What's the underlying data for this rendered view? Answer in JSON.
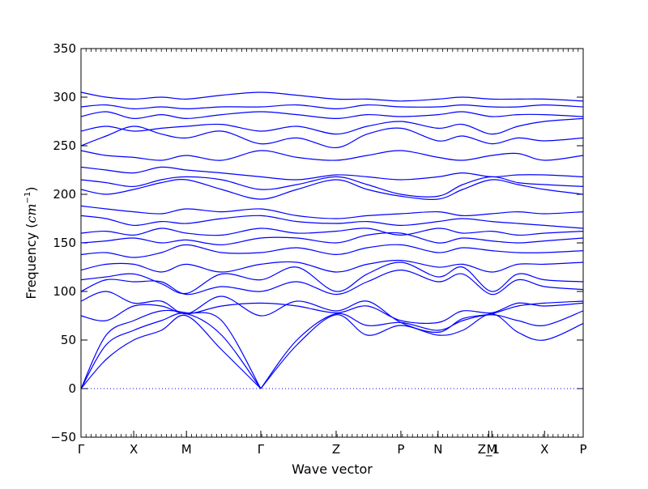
{
  "chart_data": {
    "type": "line",
    "title": "",
    "xlabel": "Wave vector",
    "ylabel": {
      "prefix": "Frequency (",
      "unit": "cm",
      "exponent": "−1",
      "suffix": ")"
    },
    "ylim": [
      -50,
      350
    ],
    "y_ticks": [
      -50,
      0,
      50,
      100,
      150,
      200,
      250,
      300,
      350
    ],
    "x_path": [
      "Γ",
      "X",
      "M",
      "Γ",
      "Z",
      "P",
      "N",
      "Z_1",
      "M",
      "X",
      "P"
    ],
    "x_high_symmetry_points": [
      {
        "label": "Γ",
        "x": 0.0
      },
      {
        "label": "X",
        "x": 0.105
      },
      {
        "label": "M",
        "x": 0.21
      },
      {
        "label": "Γ",
        "x": 0.358
      },
      {
        "label": "Z",
        "x": 0.508
      },
      {
        "label": "P",
        "x": 0.637
      },
      {
        "label": "N",
        "x": 0.711
      },
      {
        "label": "Z_1",
        "x": 0.812
      },
      {
        "label": "M",
        "x": 0.818
      },
      {
        "label": "X",
        "x": 0.923
      },
      {
        "label": "P",
        "x": 1.0
      }
    ],
    "zero_line": {
      "y": 0,
      "style": "dotted"
    },
    "line_color": "#0000ff",
    "axis_color": "#000000",
    "grid": false,
    "series": [
      {
        "x": [
          0,
          0.05,
          0.105,
          0.16,
          0.21,
          0.28,
          0.358
        ],
        "y": [
          0,
          30,
          50,
          60,
          75,
          40,
          0
        ]
      },
      {
        "x": [
          0,
          0.05,
          0.105,
          0.16,
          0.21,
          0.28,
          0.358
        ],
        "y": [
          0,
          45,
          60,
          70,
          77,
          55,
          0
        ]
      },
      {
        "x": [
          0,
          0.05,
          0.105,
          0.16,
          0.21,
          0.28,
          0.358
        ],
        "y": [
          0,
          55,
          70,
          80,
          78,
          70,
          0
        ]
      },
      {
        "x": [
          0.358,
          0.43,
          0.508,
          0.57,
          0.637,
          0.711,
          0.76,
          0.818,
          0.87,
          0.923,
          1.0
        ],
        "y": [
          0,
          45,
          76,
          55,
          65,
          55,
          60,
          77,
          58,
          50,
          67
        ]
      },
      {
        "x": [
          0.358,
          0.43,
          0.508,
          0.57,
          0.637,
          0.711,
          0.76,
          0.818,
          0.87,
          0.923,
          1.0
        ],
        "y": [
          0,
          50,
          77,
          65,
          68,
          60,
          70,
          76,
          70,
          65,
          80
        ]
      },
      {
        "x": [
          0,
          0.05,
          0.105,
          0.16,
          0.21,
          0.28,
          0.358,
          0.43,
          0.508,
          0.57,
          0.637,
          0.711,
          0.76,
          0.818,
          0.87,
          0.923,
          1.0
        ],
        "y": [
          75,
          70,
          85,
          85,
          77,
          85,
          88,
          85,
          78,
          85,
          70,
          68,
          80,
          78,
          88,
          85,
          88
        ]
      },
      {
        "x": [
          0,
          0.05,
          0.105,
          0.16,
          0.21,
          0.28,
          0.358,
          0.43,
          0.508,
          0.57,
          0.637,
          0.711,
          0.76,
          0.818,
          0.87,
          0.923,
          1.0
        ],
        "y": [
          90,
          100,
          88,
          90,
          77,
          95,
          75,
          90,
          80,
          90,
          68,
          58,
          72,
          77,
          85,
          88,
          90
        ]
      },
      {
        "x": [
          0,
          0.05,
          0.105,
          0.16,
          0.21,
          0.28,
          0.358,
          0.43,
          0.508,
          0.57,
          0.637,
          0.711,
          0.76,
          0.818,
          0.87,
          0.923,
          1.0
        ],
        "y": [
          100,
          112,
          110,
          110,
          97,
          105,
          100,
          110,
          97,
          110,
          122,
          110,
          118,
          97,
          112,
          105,
          102
        ]
      },
      {
        "x": [
          0,
          0.05,
          0.105,
          0.16,
          0.21,
          0.28,
          0.358,
          0.43,
          0.508,
          0.57,
          0.637,
          0.711,
          0.76,
          0.818,
          0.87,
          0.923,
          1.0
        ],
        "y": [
          112,
          115,
          118,
          108,
          98,
          118,
          112,
          125,
          100,
          118,
          130,
          115,
          125,
          100,
          118,
          112,
          110
        ]
      },
      {
        "x": [
          0,
          0.05,
          0.105,
          0.16,
          0.21,
          0.28,
          0.358,
          0.43,
          0.508,
          0.57,
          0.637,
          0.711,
          0.76,
          0.818,
          0.87,
          0.923,
          1.0
        ],
        "y": [
          122,
          128,
          128,
          120,
          128,
          120,
          128,
          130,
          120,
          128,
          132,
          125,
          128,
          120,
          128,
          128,
          130
        ]
      },
      {
        "x": [
          0,
          0.05,
          0.105,
          0.16,
          0.21,
          0.28,
          0.358,
          0.43,
          0.508,
          0.57,
          0.637,
          0.711,
          0.76,
          0.818,
          0.87,
          0.923,
          1.0
        ],
        "y": [
          138,
          140,
          135,
          140,
          148,
          140,
          140,
          145,
          138,
          145,
          148,
          140,
          145,
          142,
          140,
          140,
          142
        ]
      },
      {
        "x": [
          0,
          0.05,
          0.105,
          0.16,
          0.21,
          0.28,
          0.358,
          0.43,
          0.508,
          0.57,
          0.637,
          0.711,
          0.76,
          0.818,
          0.87,
          0.923,
          1.0
        ],
        "y": [
          150,
          152,
          155,
          150,
          153,
          148,
          155,
          155,
          150,
          158,
          160,
          150,
          155,
          152,
          150,
          152,
          155
        ]
      },
      {
        "x": [
          0,
          0.05,
          0.105,
          0.16,
          0.21,
          0.28,
          0.358,
          0.43,
          0.508,
          0.57,
          0.637,
          0.711,
          0.76,
          0.818,
          0.87,
          0.923,
          1.0
        ],
        "y": [
          160,
          162,
          158,
          165,
          160,
          158,
          165,
          160,
          162,
          165,
          158,
          165,
          160,
          162,
          158,
          160,
          162
        ]
      },
      {
        "x": [
          0,
          0.05,
          0.105,
          0.16,
          0.21,
          0.28,
          0.358,
          0.43,
          0.508,
          0.57,
          0.637,
          0.711,
          0.76,
          0.818,
          0.87,
          0.923,
          1.0
        ],
        "y": [
          178,
          175,
          168,
          172,
          170,
          175,
          178,
          172,
          170,
          172,
          168,
          172,
          175,
          172,
          170,
          168,
          165
        ]
      },
      {
        "x": [
          0,
          0.05,
          0.105,
          0.16,
          0.21,
          0.28,
          0.358,
          0.43,
          0.508,
          0.57,
          0.637,
          0.711,
          0.76,
          0.818,
          0.87,
          0.923,
          1.0
        ],
        "y": [
          188,
          185,
          182,
          180,
          185,
          182,
          185,
          178,
          175,
          178,
          180,
          182,
          178,
          180,
          182,
          180,
          182
        ]
      },
      {
        "x": [
          0,
          0.05,
          0.105,
          0.16,
          0.21,
          0.28,
          0.358,
          0.43,
          0.508,
          0.57,
          0.637,
          0.711,
          0.76,
          0.818,
          0.87,
          0.923,
          1.0
        ],
        "y": [
          205,
          200,
          205,
          212,
          215,
          205,
          195,
          205,
          215,
          205,
          198,
          195,
          205,
          215,
          210,
          205,
          200
        ]
      },
      {
        "x": [
          0,
          0.05,
          0.105,
          0.16,
          0.21,
          0.28,
          0.358,
          0.43,
          0.508,
          0.57,
          0.637,
          0.711,
          0.76,
          0.818,
          0.87,
          0.923,
          1.0
        ],
        "y": [
          215,
          212,
          208,
          215,
          218,
          215,
          205,
          210,
          218,
          210,
          200,
          198,
          210,
          218,
          212,
          210,
          208
        ]
      },
      {
        "x": [
          0,
          0.05,
          0.105,
          0.16,
          0.21,
          0.28,
          0.358,
          0.43,
          0.508,
          0.57,
          0.637,
          0.711,
          0.76,
          0.818,
          0.87,
          0.923,
          1.0
        ],
        "y": [
          228,
          225,
          222,
          228,
          225,
          222,
          218,
          215,
          220,
          218,
          215,
          218,
          222,
          218,
          220,
          220,
          218
        ]
      },
      {
        "x": [
          0,
          0.05,
          0.105,
          0.16,
          0.21,
          0.28,
          0.358,
          0.43,
          0.508,
          0.57,
          0.637,
          0.711,
          0.76,
          0.818,
          0.87,
          0.923,
          1.0
        ],
        "y": [
          245,
          240,
          238,
          235,
          240,
          235,
          245,
          238,
          235,
          240,
          245,
          238,
          235,
          240,
          242,
          235,
          240
        ]
      },
      {
        "x": [
          0,
          0.05,
          0.105,
          0.16,
          0.21,
          0.28,
          0.358,
          0.43,
          0.508,
          0.57,
          0.637,
          0.711,
          0.76,
          0.818,
          0.87,
          0.923,
          1.0
        ],
        "y": [
          250,
          260,
          270,
          262,
          258,
          265,
          252,
          258,
          248,
          262,
          268,
          255,
          260,
          252,
          258,
          255,
          258
        ]
      },
      {
        "x": [
          0,
          0.05,
          0.105,
          0.16,
          0.21,
          0.28,
          0.358,
          0.43,
          0.508,
          0.57,
          0.637,
          0.711,
          0.76,
          0.818,
          0.87,
          0.923,
          1.0
        ],
        "y": [
          265,
          270,
          265,
          268,
          270,
          272,
          265,
          270,
          262,
          270,
          275,
          268,
          272,
          262,
          270,
          275,
          278
        ]
      },
      {
        "x": [
          0,
          0.05,
          0.105,
          0.16,
          0.21,
          0.28,
          0.358,
          0.43,
          0.508,
          0.57,
          0.637,
          0.711,
          0.76,
          0.818,
          0.87,
          0.923,
          1.0
        ],
        "y": [
          280,
          285,
          278,
          282,
          278,
          282,
          285,
          282,
          278,
          282,
          280,
          282,
          285,
          280,
          282,
          282,
          280
        ]
      },
      {
        "x": [
          0,
          0.05,
          0.105,
          0.16,
          0.21,
          0.28,
          0.358,
          0.43,
          0.508,
          0.57,
          0.637,
          0.711,
          0.76,
          0.818,
          0.87,
          0.923,
          1.0
        ],
        "y": [
          290,
          292,
          288,
          290,
          288,
          290,
          290,
          292,
          288,
          292,
          290,
          290,
          292,
          290,
          290,
          292,
          290
        ]
      },
      {
        "x": [
          0,
          0.05,
          0.105,
          0.16,
          0.21,
          0.28,
          0.358,
          0.43,
          0.508,
          0.57,
          0.637,
          0.711,
          0.76,
          0.818,
          0.87,
          0.923,
          1.0
        ],
        "y": [
          305,
          300,
          298,
          300,
          298,
          302,
          305,
          302,
          298,
          298,
          296,
          298,
          300,
          298,
          298,
          298,
          296
        ]
      }
    ]
  }
}
